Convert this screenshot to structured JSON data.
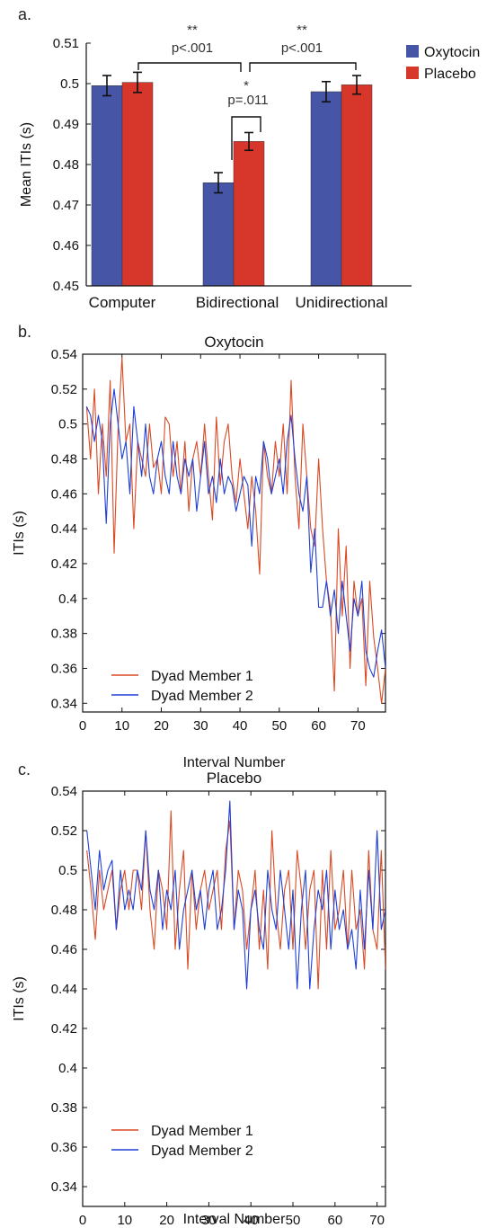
{
  "colors": {
    "oxytocin": "#4655a5",
    "placebo": "#d7372b",
    "member1": "#d94a24",
    "member2": "#1f3fd6"
  },
  "chart_data": [
    {
      "panel": "a.",
      "type": "bar",
      "title": "",
      "ylabel": "Mean ITIs (s)",
      "ylim": [
        0.45,
        0.51
      ],
      "yticks": [
        0.45,
        0.46,
        0.47,
        0.48,
        0.49,
        0.5,
        0.51
      ],
      "ytick_labels": [
        "0.45",
        "0.46",
        "0.47",
        "0.48",
        "0.49",
        "0.5",
        "0.51"
      ],
      "categories": [
        "Computer",
        "Bidirectional",
        "Unidirectional"
      ],
      "series": [
        {
          "name": "Oxytocin",
          "values": [
            0.4995,
            0.4755,
            0.498
          ],
          "errors": [
            0.0025,
            0.0025,
            0.0025
          ]
        },
        {
          "name": "Placebo",
          "values": [
            0.5003,
            0.4857,
            0.4997
          ],
          "errors": [
            0.0025,
            0.0022,
            0.0023
          ]
        }
      ],
      "legend_position": "top-right",
      "annotations": [
        {
          "stars": "**",
          "text": "p<.001",
          "between": [
            "Computer",
            "Bidirectional"
          ]
        },
        {
          "stars": "**",
          "text": "p<.001",
          "between": [
            "Bidirectional",
            "Unidirectional"
          ]
        },
        {
          "stars": "*",
          "text": "p=.011",
          "between": [
            "Bidirectional Oxytocin",
            "Bidirectional Placebo"
          ]
        }
      ]
    },
    {
      "panel": "b.",
      "type": "line",
      "title": "Oxytocin",
      "xlabel": "Interval Number",
      "ylabel": "ITIs (s)",
      "xlim": [
        0,
        77
      ],
      "ylim": [
        0.335,
        0.54
      ],
      "xticks": [
        0,
        10,
        20,
        30,
        40,
        50,
        60,
        70
      ],
      "yticks": [
        0.34,
        0.36,
        0.38,
        0.4,
        0.42,
        0.44,
        0.46,
        0.48,
        0.5,
        0.52,
        0.54
      ],
      "ytick_labels": [
        "0.34",
        "0.36",
        "0.38",
        "0.4",
        "0.42",
        "0.44",
        "0.46",
        "0.48",
        "0.5",
        "0.52",
        "0.54"
      ],
      "legend_position": "bottom-left",
      "series": [
        {
          "name": "Dyad Member 1",
          "values": [
            0.51,
            0.48,
            0.52,
            0.46,
            0.5,
            0.47,
            0.525,
            0.426,
            0.497,
            0.538,
            0.49,
            0.5,
            0.44,
            0.49,
            0.48,
            0.47,
            0.5,
            0.475,
            0.48,
            0.46,
            0.504,
            0.5,
            0.47,
            0.49,
            0.46,
            0.49,
            0.45,
            0.48,
            0.49,
            0.47,
            0.5,
            0.47,
            0.445,
            0.504,
            0.465,
            0.49,
            0.5,
            0.47,
            0.455,
            0.48,
            0.46,
            0.44,
            0.47,
            0.45,
            0.414,
            0.49,
            0.47,
            0.46,
            0.49,
            0.47,
            0.5,
            0.46,
            0.525,
            0.47,
            0.44,
            0.5,
            0.47,
            0.44,
            0.43,
            0.48,
            0.44,
            0.41,
            0.395,
            0.347,
            0.44,
            0.39,
            0.43,
            0.36,
            0.41,
            0.39,
            0.4,
            0.35,
            0.41,
            0.378,
            0.36,
            0.34,
            0.36
          ]
        },
        {
          "name": "Dyad Member 2",
          "values": [
            0.51,
            0.505,
            0.49,
            0.505,
            0.49,
            0.443,
            0.5,
            0.52,
            0.5,
            0.48,
            0.49,
            0.46,
            0.51,
            0.49,
            0.47,
            0.5,
            0.47,
            0.46,
            0.48,
            0.49,
            0.47,
            0.46,
            0.49,
            0.47,
            0.46,
            0.48,
            0.47,
            0.48,
            0.45,
            0.47,
            0.49,
            0.46,
            0.47,
            0.455,
            0.48,
            0.46,
            0.47,
            0.465,
            0.45,
            0.46,
            0.47,
            0.465,
            0.43,
            0.47,
            0.46,
            0.49,
            0.48,
            0.46,
            0.47,
            0.48,
            0.46,
            0.49,
            0.505,
            0.48,
            0.46,
            0.45,
            0.47,
            0.415,
            0.44,
            0.395,
            0.395,
            0.41,
            0.39,
            0.405,
            0.38,
            0.41,
            0.39,
            0.37,
            0.4,
            0.39,
            0.41,
            0.37,
            0.36,
            0.355,
            0.37,
            0.382,
            0.36
          ]
        }
      ]
    },
    {
      "panel": "c.",
      "type": "line",
      "title": "Placebo",
      "xlabel": "Interval Number",
      "ylabel": "ITIs (s)",
      "xlim": [
        0,
        72
      ],
      "ylim": [
        0.33,
        0.54
      ],
      "xticks": [
        0,
        10,
        20,
        30,
        40,
        50,
        60,
        70
      ],
      "yticks": [
        0.34,
        0.36,
        0.38,
        0.4,
        0.42,
        0.44,
        0.46,
        0.48,
        0.5,
        0.52,
        0.54
      ],
      "ytick_labels": [
        "0.34",
        "0.36",
        "0.38",
        "0.4",
        "0.42",
        "0.44",
        "0.46",
        "0.48",
        "0.5",
        "0.52",
        "0.54"
      ],
      "legend_position": "bottom-left",
      "series": [
        {
          "name": "Dyad Member 1",
          "values": [
            0.51,
            0.49,
            0.465,
            0.5,
            0.48,
            0.49,
            0.5,
            0.47,
            0.49,
            0.5,
            0.48,
            0.5,
            0.5,
            0.48,
            0.52,
            0.48,
            0.46,
            0.5,
            0.49,
            0.47,
            0.53,
            0.46,
            0.49,
            0.51,
            0.45,
            0.5,
            0.47,
            0.49,
            0.5,
            0.48,
            0.49,
            0.5,
            0.47,
            0.51,
            0.525,
            0.47,
            0.5,
            0.49,
            0.46,
            0.48,
            0.5,
            0.46,
            0.49,
            0.45,
            0.52,
            0.48,
            0.46,
            0.49,
            0.5,
            0.46,
            0.51,
            0.49,
            0.46,
            0.49,
            0.5,
            0.44,
            0.5,
            0.46,
            0.51,
            0.47,
            0.48,
            0.5,
            0.46,
            0.5,
            0.47,
            0.48,
            0.45,
            0.51,
            0.47,
            0.46,
            0.51,
            0.45,
            0.49
          ]
        },
        {
          "name": "Dyad Member 2",
          "values": [
            0.52,
            0.5,
            0.48,
            0.51,
            0.49,
            0.5,
            0.505,
            0.47,
            0.5,
            0.48,
            0.49,
            0.48,
            0.5,
            0.49,
            0.52,
            0.49,
            0.48,
            0.5,
            0.47,
            0.49,
            0.48,
            0.5,
            0.46,
            0.48,
            0.49,
            0.5,
            0.48,
            0.49,
            0.47,
            0.49,
            0.5,
            0.47,
            0.48,
            0.5,
            0.535,
            0.47,
            0.49,
            0.48,
            0.44,
            0.48,
            0.49,
            0.47,
            0.46,
            0.5,
            0.48,
            0.47,
            0.5,
            0.48,
            0.46,
            0.49,
            0.44,
            0.48,
            0.5,
            0.44,
            0.47,
            0.49,
            0.48,
            0.5,
            0.46,
            0.49,
            0.47,
            0.48,
            0.46,
            0.47,
            0.45,
            0.49,
            0.46,
            0.5,
            0.47,
            0.52,
            0.47,
            0.48,
            0.46
          ]
        }
      ]
    }
  ]
}
